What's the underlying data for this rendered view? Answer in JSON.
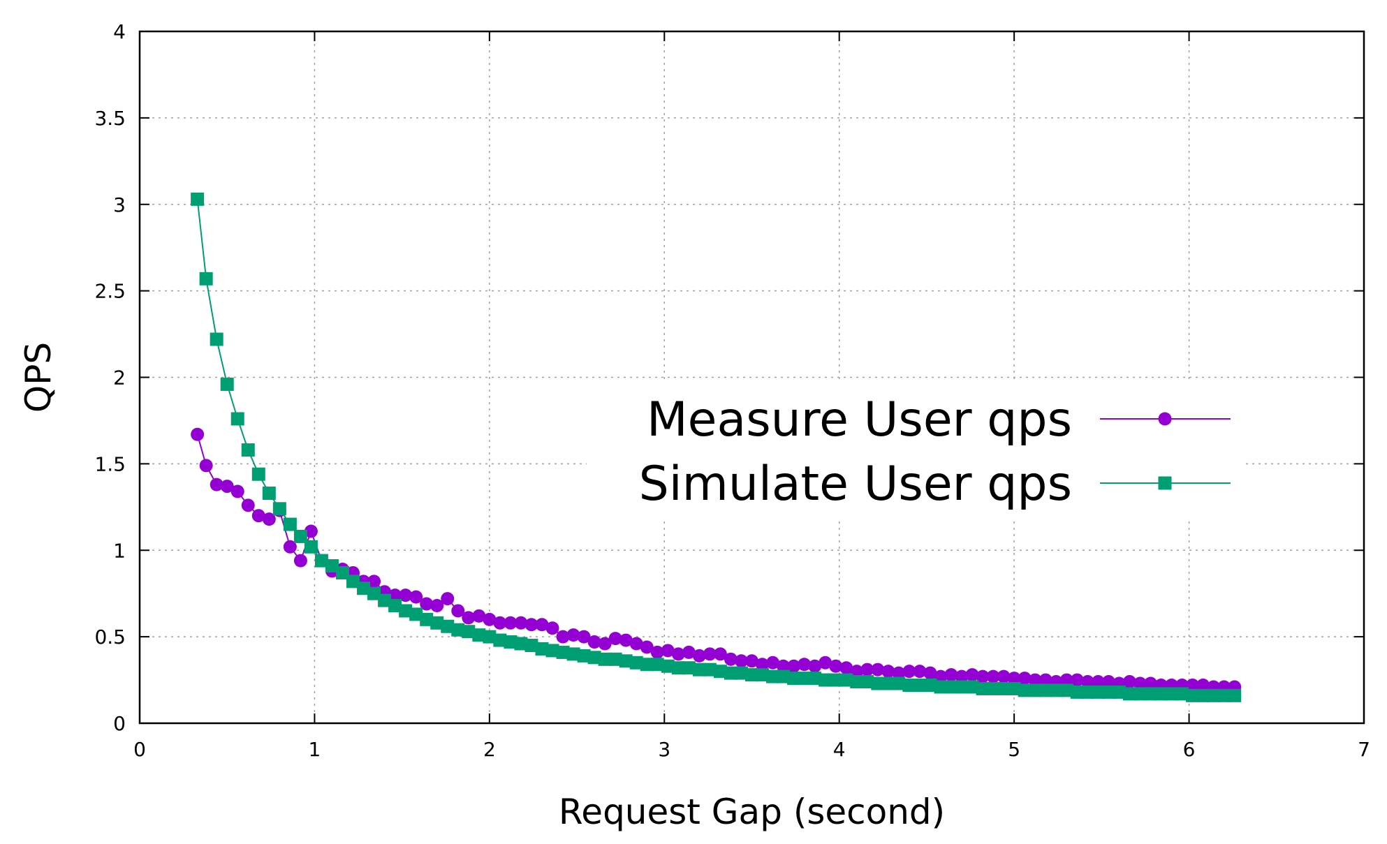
{
  "chart_data": {
    "type": "line",
    "title": "",
    "xlabel": "Request Gap (second)",
    "ylabel": "QPS",
    "xlim": [
      0,
      7
    ],
    "ylim": [
      0,
      4
    ],
    "xticks": [
      "0",
      "1",
      "2",
      "3",
      "4",
      "5",
      "6",
      "7"
    ],
    "yticks": [
      "0",
      "0.5",
      "1",
      "1.5",
      "2",
      "2.5",
      "3",
      "3.5",
      "4"
    ],
    "grid": true,
    "legend_position": "right-center",
    "series": [
      {
        "name": "Measure User qps",
        "color": "#9400d3",
        "marker": "circle",
        "x": [
          0.33,
          0.38,
          0.44,
          0.5,
          0.56,
          0.62,
          0.68,
          0.74,
          0.8,
          0.86,
          0.92,
          0.98,
          1.04,
          1.1,
          1.16,
          1.22,
          1.28,
          1.34,
          1.4,
          1.46,
          1.52,
          1.58,
          1.64,
          1.7,
          1.76,
          1.82,
          1.88,
          1.94,
          2.0,
          2.06,
          2.12,
          2.18,
          2.24,
          2.3,
          2.36,
          2.42,
          2.48,
          2.54,
          2.6,
          2.66,
          2.72,
          2.78,
          2.84,
          2.9,
          2.96,
          3.02,
          3.08,
          3.14,
          3.2,
          3.26,
          3.32,
          3.38,
          3.44,
          3.5,
          3.56,
          3.62,
          3.68,
          3.74,
          3.8,
          3.86,
          3.92,
          3.98,
          4.04,
          4.1,
          4.16,
          4.22,
          4.28,
          4.34,
          4.4,
          4.46,
          4.52,
          4.58,
          4.64,
          4.7,
          4.76,
          4.82,
          4.88,
          4.94,
          5.0,
          5.06,
          5.12,
          5.18,
          5.24,
          5.3,
          5.36,
          5.42,
          5.48,
          5.54,
          5.6,
          5.66,
          5.72,
          5.78,
          5.84,
          5.9,
          5.96,
          6.02,
          6.08,
          6.14,
          6.2,
          6.26
        ],
        "y": [
          1.67,
          1.49,
          1.38,
          1.37,
          1.34,
          1.26,
          1.2,
          1.18,
          1.23,
          1.02,
          0.94,
          1.11,
          0.94,
          0.88,
          0.89,
          0.87,
          0.82,
          0.82,
          0.76,
          0.74,
          0.74,
          0.73,
          0.69,
          0.68,
          0.72,
          0.65,
          0.61,
          0.62,
          0.6,
          0.58,
          0.58,
          0.58,
          0.57,
          0.57,
          0.55,
          0.5,
          0.51,
          0.5,
          0.47,
          0.46,
          0.49,
          0.48,
          0.46,
          0.44,
          0.41,
          0.42,
          0.4,
          0.41,
          0.39,
          0.4,
          0.4,
          0.37,
          0.36,
          0.36,
          0.34,
          0.35,
          0.33,
          0.33,
          0.34,
          0.33,
          0.35,
          0.33,
          0.32,
          0.3,
          0.31,
          0.31,
          0.3,
          0.29,
          0.3,
          0.3,
          0.29,
          0.27,
          0.28,
          0.27,
          0.28,
          0.27,
          0.27,
          0.27,
          0.26,
          0.26,
          0.25,
          0.25,
          0.24,
          0.25,
          0.25,
          0.24,
          0.24,
          0.24,
          0.23,
          0.24,
          0.23,
          0.23,
          0.22,
          0.22,
          0.22,
          0.22,
          0.22,
          0.21,
          0.21,
          0.21
        ]
      },
      {
        "name": "Simulate User qps",
        "color": "#009e73",
        "marker": "square",
        "x": [
          0.33,
          0.38,
          0.44,
          0.5,
          0.56,
          0.62,
          0.68,
          0.74,
          0.8,
          0.86,
          0.92,
          0.98,
          1.04,
          1.1,
          1.16,
          1.22,
          1.28,
          1.34,
          1.4,
          1.46,
          1.52,
          1.58,
          1.64,
          1.7,
          1.76,
          1.82,
          1.88,
          1.94,
          2.0,
          2.06,
          2.12,
          2.18,
          2.24,
          2.3,
          2.36,
          2.42,
          2.48,
          2.54,
          2.6,
          2.66,
          2.72,
          2.78,
          2.84,
          2.9,
          2.96,
          3.02,
          3.08,
          3.14,
          3.2,
          3.26,
          3.32,
          3.38,
          3.44,
          3.5,
          3.56,
          3.62,
          3.68,
          3.74,
          3.8,
          3.86,
          3.92,
          3.98,
          4.04,
          4.1,
          4.16,
          4.22,
          4.28,
          4.34,
          4.4,
          4.46,
          4.52,
          4.58,
          4.64,
          4.7,
          4.76,
          4.82,
          4.88,
          4.94,
          5.0,
          5.06,
          5.12,
          5.18,
          5.24,
          5.3,
          5.36,
          5.42,
          5.48,
          5.54,
          5.6,
          5.66,
          5.72,
          5.78,
          5.84,
          5.9,
          5.96,
          6.02,
          6.08,
          6.14,
          6.2,
          6.26
        ],
        "y": [
          3.03,
          2.57,
          2.22,
          1.96,
          1.76,
          1.58,
          1.44,
          1.33,
          1.24,
          1.15,
          1.08,
          1.02,
          0.94,
          0.91,
          0.87,
          0.82,
          0.78,
          0.75,
          0.71,
          0.68,
          0.65,
          0.63,
          0.6,
          0.58,
          0.56,
          0.54,
          0.53,
          0.51,
          0.5,
          0.48,
          0.47,
          0.46,
          0.45,
          0.43,
          0.42,
          0.41,
          0.4,
          0.39,
          0.38,
          0.37,
          0.37,
          0.36,
          0.35,
          0.34,
          0.34,
          0.33,
          0.32,
          0.32,
          0.31,
          0.31,
          0.3,
          0.29,
          0.29,
          0.28,
          0.28,
          0.27,
          0.27,
          0.26,
          0.26,
          0.26,
          0.25,
          0.25,
          0.25,
          0.24,
          0.24,
          0.23,
          0.23,
          0.23,
          0.22,
          0.22,
          0.22,
          0.21,
          0.21,
          0.21,
          0.21,
          0.2,
          0.2,
          0.2,
          0.2,
          0.19,
          0.19,
          0.19,
          0.19,
          0.19,
          0.18,
          0.18,
          0.18,
          0.18,
          0.18,
          0.17,
          0.17,
          0.17,
          0.17,
          0.17,
          0.17,
          0.16,
          0.16,
          0.16,
          0.16,
          0.16
        ]
      }
    ]
  }
}
